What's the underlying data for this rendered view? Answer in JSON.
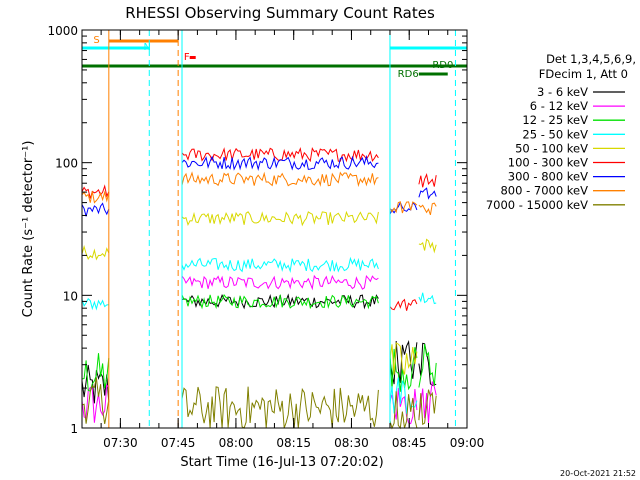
{
  "chart_data": {
    "type": "line",
    "title": "RHESSI Observing Summary Count Rates",
    "xlabel": "Start Time (16-Jul-13 07:20:02)",
    "ylabel": "Count Rate (s⁻¹ detector⁻¹)",
    "y_scale": "log",
    "ylim": [
      1,
      1000
    ],
    "xlim": [
      "07:20:02",
      "09:00:00"
    ],
    "x_ticks": [
      "07:30",
      "07:45",
      "08:00",
      "08:15",
      "08:30",
      "08:45",
      "09:00"
    ],
    "y_ticks": [
      "1",
      "10",
      "100",
      "1000"
    ],
    "footer": "20-Oct-2021 21:52",
    "legend_header": [
      "Det 1,3,4,5,6,9,",
      "FDecim 1, Att 0"
    ],
    "series": [
      {
        "name": "3 - 6 keV",
        "color": "#000000"
      },
      {
        "name": "6 - 12 keV",
        "color": "#ff00ff"
      },
      {
        "name": "12 - 25 keV",
        "color": "#00e000"
      },
      {
        "name": "25 - 50 keV",
        "color": "#00ffff"
      },
      {
        "name": "50 - 100 keV",
        "color": "#d8d800"
      },
      {
        "name": "100 - 300 keV",
        "color": "#ff0000"
      },
      {
        "name": "300 - 800 keV",
        "color": "#0000ff"
      },
      {
        "name": "800 - 7000 keV",
        "color": "#ff8000"
      },
      {
        "name": "7000 - 15000 keV",
        "color": "#808000"
      }
    ],
    "flag_labels": [
      "S",
      "N",
      "F",
      "RD0",
      "RD6"
    ],
    "segments": [
      {
        "start": "07:20:02",
        "end": "07:27:00",
        "values": {
          "3 - 6 keV": 2.0,
          "6 - 12 keV": 1.5,
          "12 - 25 keV": 2.5,
          "25 - 50 keV": 8.7,
          "50 - 100 keV": 21,
          "100 - 300 keV": 60,
          "300 - 800 keV": 44,
          "800 - 7000 keV": 55,
          "7000 - 15000 keV": 1.6
        }
      },
      {
        "start": "07:46:00",
        "end": "08:37:00",
        "values": {
          "3 - 6 keV": 9,
          "6 - 12 keV": 12.5,
          "12 - 25 keV": 9,
          "25 - 50 keV": 17,
          "50 - 100 keV": 38,
          "100 - 300 keV": 115,
          "300 - 800 keV": 100,
          "800 - 7000 keV": 75,
          "7000 - 15000 keV": 1.4
        }
      },
      {
        "start": "08:40:00",
        "end": "08:47:00",
        "values": {
          "3 - 6 keV": 3.2,
          "6 - 12 keV": 1.5,
          "12 - 25 keV": 2.8,
          "25 - 50 keV": 1.8,
          "50 - 100 keV": 3.0,
          "100 - 300 keV": 8.5,
          "300 - 800 keV": 45,
          "800 - 7000 keV": 46,
          "7000 - 15000 keV": 1.3
        }
      },
      {
        "start": "08:47:30",
        "end": "08:52:00",
        "values": {
          "3 - 6 keV": 3.0,
          "6 - 12 keV": 1.6,
          "12 - 25 keV": 3.0,
          "25 - 50 keV": 9.5,
          "50 - 100 keV": 24,
          "100 - 300 keV": 73,
          "300 - 800 keV": 58,
          "800 - 7000 keV": 45,
          "7000 - 15000 keV": 1.4
        }
      }
    ]
  }
}
